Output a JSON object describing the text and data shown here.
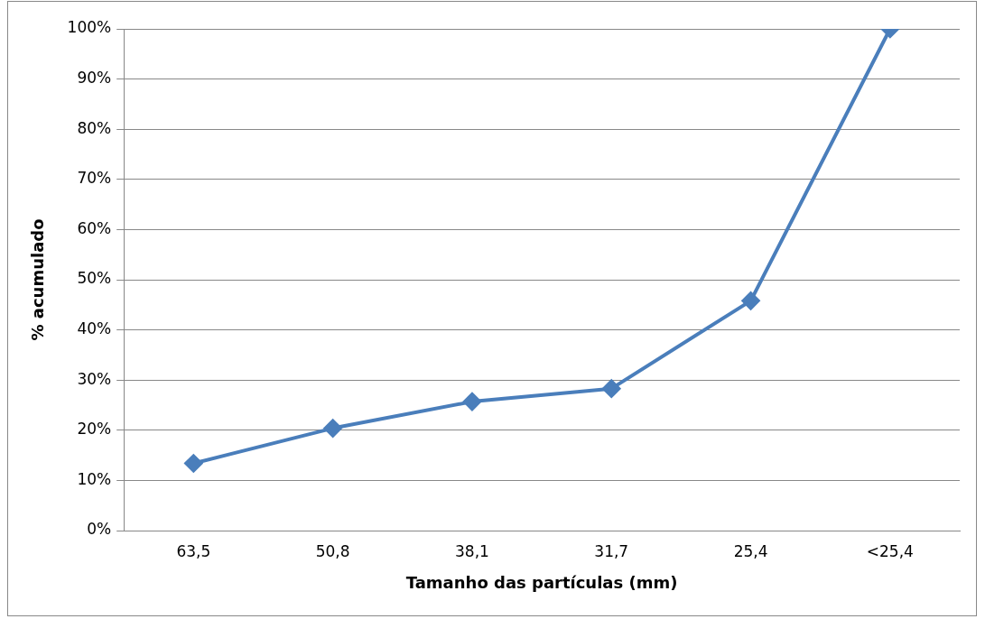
{
  "chart_data": {
    "type": "line",
    "xlabel": "Tamanho das partículas (mm)",
    "ylabel": "% acumulado",
    "categories": [
      "63,5",
      "50,8",
      "38,1",
      "31,7",
      "25,4",
      "<25,4"
    ],
    "series": [
      {
        "color": "#4a7ebb",
        "values": [
          13.4,
          20.4,
          25.7,
          28.3,
          45.8,
          100
        ]
      }
    ],
    "ylim": [
      0,
      100
    ],
    "yticks": [
      {
        "value": 0,
        "label": "0%"
      },
      {
        "value": 10,
        "label": "10%"
      },
      {
        "value": 20,
        "label": "20%"
      },
      {
        "value": 30,
        "label": "30%"
      },
      {
        "value": 40,
        "label": "40%"
      },
      {
        "value": 50,
        "label": "50%"
      },
      {
        "value": 60,
        "label": "60%"
      },
      {
        "value": 70,
        "label": "70%"
      },
      {
        "value": 80,
        "label": "80%"
      },
      {
        "value": 90,
        "label": "90%"
      },
      {
        "value": 100,
        "label": "100%"
      }
    ],
    "grid": "y",
    "legend": false,
    "marker": "diamond",
    "line_style": "solid"
  }
}
